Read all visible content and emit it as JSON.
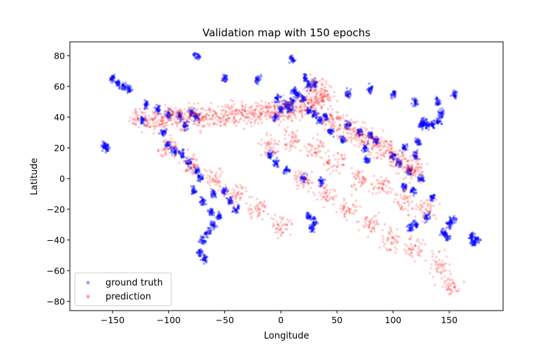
{
  "chart_data": {
    "type": "scatter",
    "title": "Validation map with 150 epochs",
    "xlabel": "Longitude",
    "ylabel": "Latitude",
    "xlim": [
      -188,
      198
    ],
    "ylim": [
      -86,
      89
    ],
    "xticks": [
      -150,
      -100,
      -50,
      0,
      50,
      100,
      150
    ],
    "yticks": [
      -80,
      -60,
      -40,
      -20,
      0,
      20,
      40,
      60,
      80
    ],
    "xtick_labels": [
      "−150",
      "−100",
      "−50",
      "0",
      "50",
      "100",
      "150"
    ],
    "ytick_labels": [
      "−80",
      "−60",
      "−40",
      "−20",
      "0",
      "20",
      "40",
      "60",
      "80"
    ],
    "grid": false,
    "legend_position": "lower-left",
    "series": [
      {
        "name": "ground truth",
        "color": "#0000ff",
        "approx_points": [
          [
            -120,
            48
          ],
          [
            -110,
            45
          ],
          [
            -100,
            42
          ],
          [
            -90,
            40
          ],
          [
            -85,
            35
          ],
          [
            -80,
            43
          ],
          [
            -75,
            40
          ],
          [
            -123,
            38
          ],
          [
            -105,
            30
          ],
          [
            -100,
            22
          ],
          [
            -95,
            18
          ],
          [
            -88,
            16
          ],
          [
            -82,
            10
          ],
          [
            -75,
            5
          ],
          [
            -72,
            0
          ],
          [
            -78,
            -8
          ],
          [
            -70,
            -15
          ],
          [
            -60,
            -10
          ],
          [
            -50,
            -8
          ],
          [
            -45,
            -15
          ],
          [
            -40,
            -20
          ],
          [
            -55,
            -25
          ],
          [
            -60,
            -30
          ],
          [
            -65,
            -35
          ],
          [
            -70,
            -40
          ],
          [
            -72,
            -48
          ],
          [
            -68,
            -52
          ],
          [
            -62,
            -22
          ],
          [
            -5,
            40
          ],
          [
            0,
            45
          ],
          [
            5,
            48
          ],
          [
            10,
            50
          ],
          [
            15,
            55
          ],
          [
            20,
            52
          ],
          [
            25,
            60
          ],
          [
            30,
            62
          ],
          [
            22,
            65
          ],
          [
            12,
            57
          ],
          [
            -3,
            52
          ],
          [
            8,
            46
          ],
          [
            25,
            45
          ],
          [
            30,
            42
          ],
          [
            35,
            38
          ],
          [
            40,
            40
          ],
          [
            -10,
            15
          ],
          [
            -5,
            10
          ],
          [
            5,
            6
          ],
          [
            20,
            0
          ],
          [
            25,
            -25
          ],
          [
            30,
            -28
          ],
          [
            28,
            -32
          ],
          [
            36,
            -2
          ],
          [
            45,
            30
          ],
          [
            55,
            25
          ],
          [
            60,
            35
          ],
          [
            70,
            30
          ],
          [
            75,
            20
          ],
          [
            77,
            12
          ],
          [
            80,
            28
          ],
          [
            85,
            25
          ],
          [
            100,
            15
          ],
          [
            105,
            10
          ],
          [
            110,
            20
          ],
          [
            115,
            5
          ],
          [
            120,
            15
          ],
          [
            122,
            24
          ],
          [
            125,
            0
          ],
          [
            110,
            -5
          ],
          [
            118,
            -8
          ],
          [
            125,
            35
          ],
          [
            130,
            35
          ],
          [
            135,
            35
          ],
          [
            140,
            38
          ],
          [
            143,
            42
          ],
          [
            127,
            37
          ],
          [
            115,
            -32
          ],
          [
            120,
            -30
          ],
          [
            130,
            -25
          ],
          [
            145,
            -35
          ],
          [
            150,
            -30
          ],
          [
            148,
            -38
          ],
          [
            135,
            -12
          ],
          [
            153,
            -27
          ],
          [
            170,
            -38
          ],
          [
            175,
            -40
          ],
          [
            172,
            -42
          ],
          [
            -145,
            62
          ],
          [
            -140,
            60
          ],
          [
            -150,
            65
          ],
          [
            -135,
            58
          ],
          [
            60,
            55
          ],
          [
            80,
            58
          ],
          [
            100,
            55
          ],
          [
            120,
            50
          ],
          [
            140,
            50
          ],
          [
            155,
            55
          ],
          [
            -155,
            20
          ],
          [
            -157,
            21
          ],
          [
            -75,
            80
          ],
          [
            10,
            78
          ],
          [
            -50,
            65
          ],
          [
            -20,
            65
          ]
        ]
      },
      {
        "name": "prediction",
        "color": "#ff0000",
        "approx_points": [
          [
            -125,
            40
          ],
          [
            -115,
            38
          ],
          [
            -105,
            38
          ],
          [
            -95,
            39
          ],
          [
            -85,
            40
          ],
          [
            -75,
            40
          ],
          [
            -65,
            41
          ],
          [
            -55,
            41
          ],
          [
            -45,
            42
          ],
          [
            -35,
            42
          ],
          [
            -25,
            43
          ],
          [
            -15,
            43
          ],
          [
            -5,
            44
          ],
          [
            5,
            45
          ],
          [
            15,
            46
          ],
          [
            25,
            48
          ],
          [
            35,
            52
          ],
          [
            40,
            55
          ],
          [
            30,
            58
          ],
          [
            45,
            38
          ],
          [
            55,
            34
          ],
          [
            65,
            30
          ],
          [
            75,
            26
          ],
          [
            85,
            22
          ],
          [
            95,
            18
          ],
          [
            105,
            12
          ],
          [
            115,
            8
          ],
          [
            120,
            5
          ],
          [
            -100,
            20
          ],
          [
            -80,
            10
          ],
          [
            -60,
            0
          ],
          [
            -40,
            -10
          ],
          [
            -20,
            -20
          ],
          [
            0,
            -30
          ],
          [
            20,
            0
          ],
          [
            40,
            -10
          ],
          [
            60,
            -20
          ],
          [
            80,
            -30
          ],
          [
            100,
            -40
          ],
          [
            120,
            -45
          ],
          [
            140,
            -55
          ],
          [
            150,
            -70
          ],
          [
            -10,
            20
          ],
          [
            10,
            25
          ],
          [
            30,
            20
          ],
          [
            50,
            10
          ],
          [
            70,
            0
          ],
          [
            90,
            -5
          ],
          [
            110,
            -15
          ],
          [
            130,
            -20
          ]
        ]
      }
    ]
  },
  "legend": {
    "ground_truth": "ground truth",
    "prediction": "prediction"
  }
}
